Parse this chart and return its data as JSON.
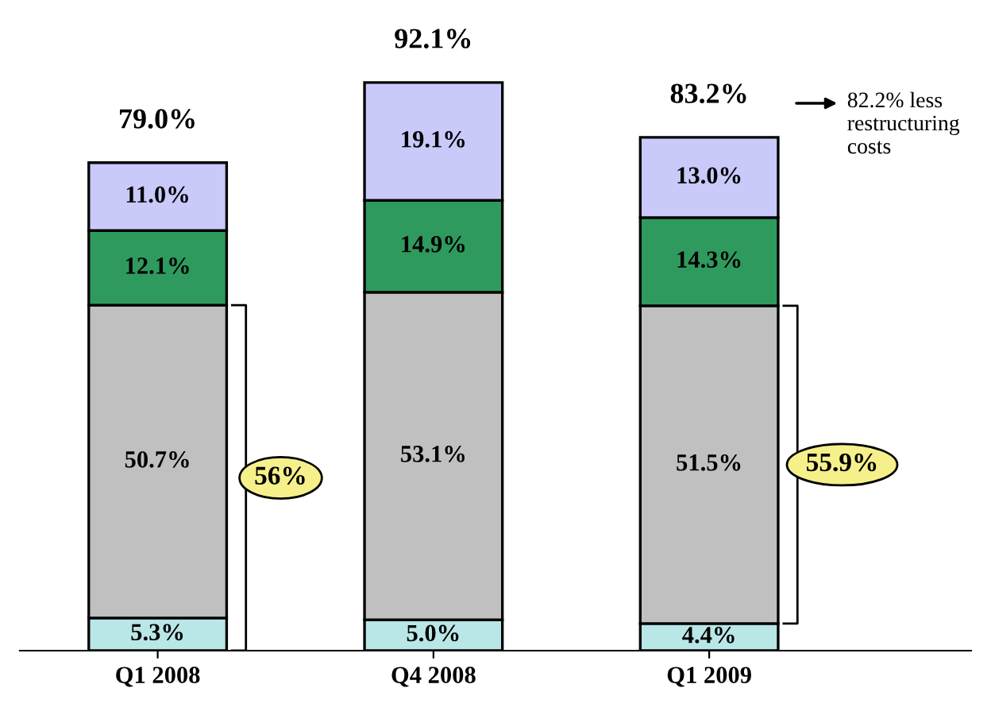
{
  "chart_data": {
    "type": "bar",
    "stacked": true,
    "categories": [
      "Q1 2008",
      "Q4 2008",
      "Q1 2009"
    ],
    "series": [
      {
        "color": "#b9e6e6",
        "values": [
          5.3,
          5.0,
          4.4
        ],
        "value_labels": [
          "5.3%",
          "5.0%",
          "4.4%"
        ]
      },
      {
        "color": "#c0c0c0",
        "values": [
          50.7,
          53.1,
          51.5
        ],
        "value_labels": [
          "50.7%",
          "53.1%",
          "51.5%"
        ]
      },
      {
        "color": "#2e9a5e",
        "values": [
          12.1,
          14.9,
          14.3
        ],
        "value_labels": [
          "12.1%",
          "14.9%",
          "14.3%"
        ]
      },
      {
        "color": "#c9c9fa",
        "values": [
          11.0,
          19.1,
          13.0
        ],
        "value_labels": [
          "11.0%",
          "19.1%",
          "13.0%"
        ]
      }
    ],
    "totals": [
      "79.0%",
      "92.1%",
      "83.2%"
    ],
    "annotations": [
      "56%",
      "55.9%",
      "82.2% less restructuring costs"
    ],
    "grid": false,
    "legend": false
  }
}
